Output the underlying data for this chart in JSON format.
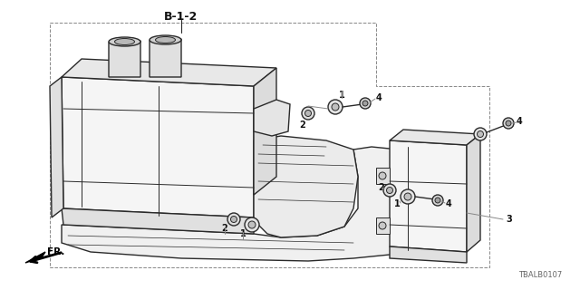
{
  "bg_color": "#ffffff",
  "part_code": "TBALB0107",
  "direction_label": "FR.",
  "section_label": "B-1-2",
  "line_color": "#2a2a2a",
  "dashed_color": "#888888",
  "text_color": "#111111",
  "light_gray": "#d8d8d8",
  "mid_gray": "#b0b0b0",
  "dark_gray": "#888888"
}
